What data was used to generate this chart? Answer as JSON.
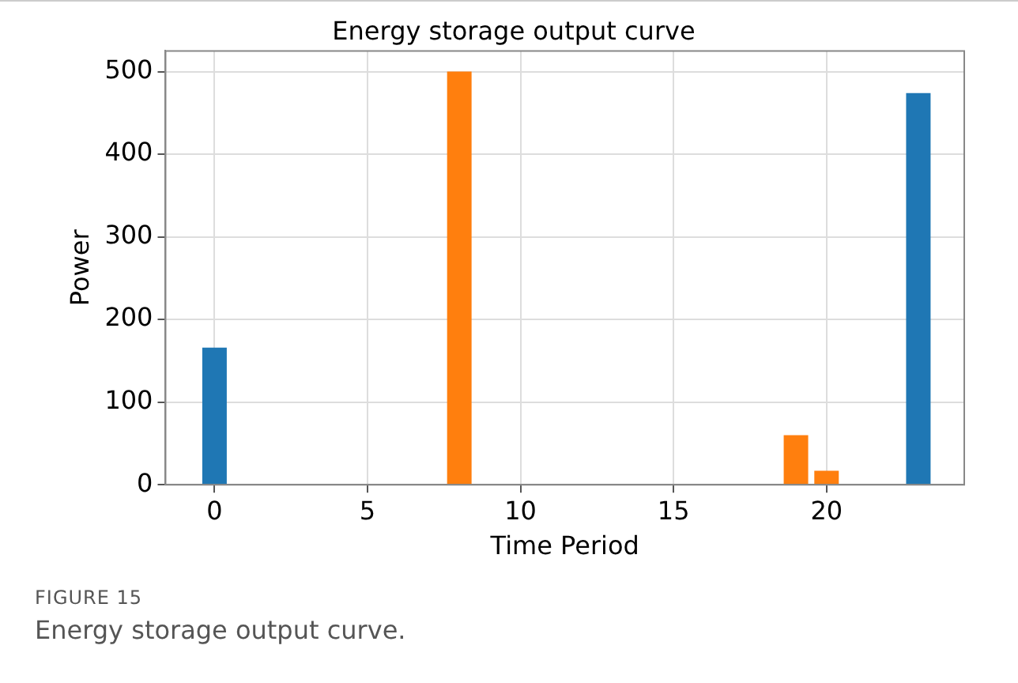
{
  "chart_data": {
    "type": "bar",
    "title": "Energy storage output curve",
    "xlabel": "Time Period",
    "ylabel": "Power",
    "series": [
      {
        "color": "#1f77b4",
        "x": [
          0,
          23
        ],
        "values": [
          166,
          474
        ]
      },
      {
        "color": "#ff7f0e",
        "x": [
          8,
          19,
          20
        ],
        "values": [
          500,
          60,
          17
        ]
      }
    ],
    "xlim": [
      -1.6,
      24.5
    ],
    "xticks": [
      0,
      5,
      10,
      15,
      20
    ],
    "ylim": [
      0,
      525
    ],
    "yticks": [
      0,
      100,
      200,
      300,
      400,
      500
    ],
    "grid": true,
    "annotations": [
      "FIGURE 15",
      "Energy storage output curve."
    ]
  }
}
